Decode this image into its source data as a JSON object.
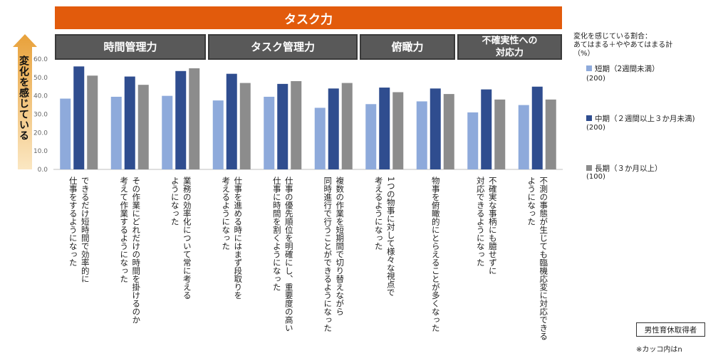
{
  "banner": "タスク力",
  "groups": [
    {
      "label": "時間管理力"
    },
    {
      "label": "タスク管理力"
    },
    {
      "label": "俯瞰力"
    },
    {
      "label": "不確実性への\n対応力"
    }
  ],
  "side_label": "変化を感じている",
  "legend": {
    "heading": "変化を感じている割合：\nあてはまる＋ややあてはまる計\n（%）",
    "items": [
      {
        "label": "短期（2週間未満）",
        "n": "(200)"
      },
      {
        "label": "中期（２週間以上３か月未満)",
        "n": "(200)"
      },
      {
        "label": "長期（３か月以上）",
        "n": "(100)"
      }
    ]
  },
  "note_box": "男性育休取得者",
  "note_text": "※カッコ内はn",
  "colors": {
    "short": "#8eaadb",
    "mid": "#2f4d8f",
    "long": "#8c8c8c",
    "banner": "#e25b0c",
    "group": "#595959"
  },
  "chart_data": {
    "type": "bar",
    "ylim": [
      0,
      60
    ],
    "yticks": [
      "0.0",
      "10.0",
      "20.0",
      "30.0",
      "40.0",
      "50.0",
      "60.0"
    ],
    "categories": [
      "できるだけ短時間で効率的に\n仕事をするようになった",
      "その作業にどれだけの時間を掛けるのか\n考えて作業するようになった",
      "業務の効率化について常に考える\nようになった",
      "仕事を進める時にはまず段取りを\n考えるようになった",
      "仕事の優先順位を明確にし、重要度の高い\n仕事に時間を割くようになった",
      "複数の作業を短期間で切り替えながら\n同時進行で行うことができるようになった",
      "1つの物事に対して様々な視点で\n考えるようになった",
      "物事を俯瞰的にとらえることが多くなった",
      "不確実な事柄にも臆せずに\n対応できるようになった",
      "不測の事態が生じても臨機応変に対応できる\nようになった"
    ],
    "series": [
      {
        "name": "短期（2週間未満）",
        "values": [
          38.5,
          39.5,
          40.0,
          37.5,
          39.5,
          33.5,
          35.5,
          37.0,
          31.0,
          35.0
        ]
      },
      {
        "name": "中期（２週間以上３か月未満)",
        "values": [
          56.0,
          50.5,
          53.5,
          52.0,
          46.5,
          44.0,
          44.5,
          44.0,
          43.5,
          45.0
        ]
      },
      {
        "name": "長期（３か月以上）",
        "values": [
          51.0,
          46.0,
          55.0,
          47.0,
          48.0,
          47.0,
          42.0,
          41.0,
          38.0,
          38.0
        ]
      }
    ]
  }
}
